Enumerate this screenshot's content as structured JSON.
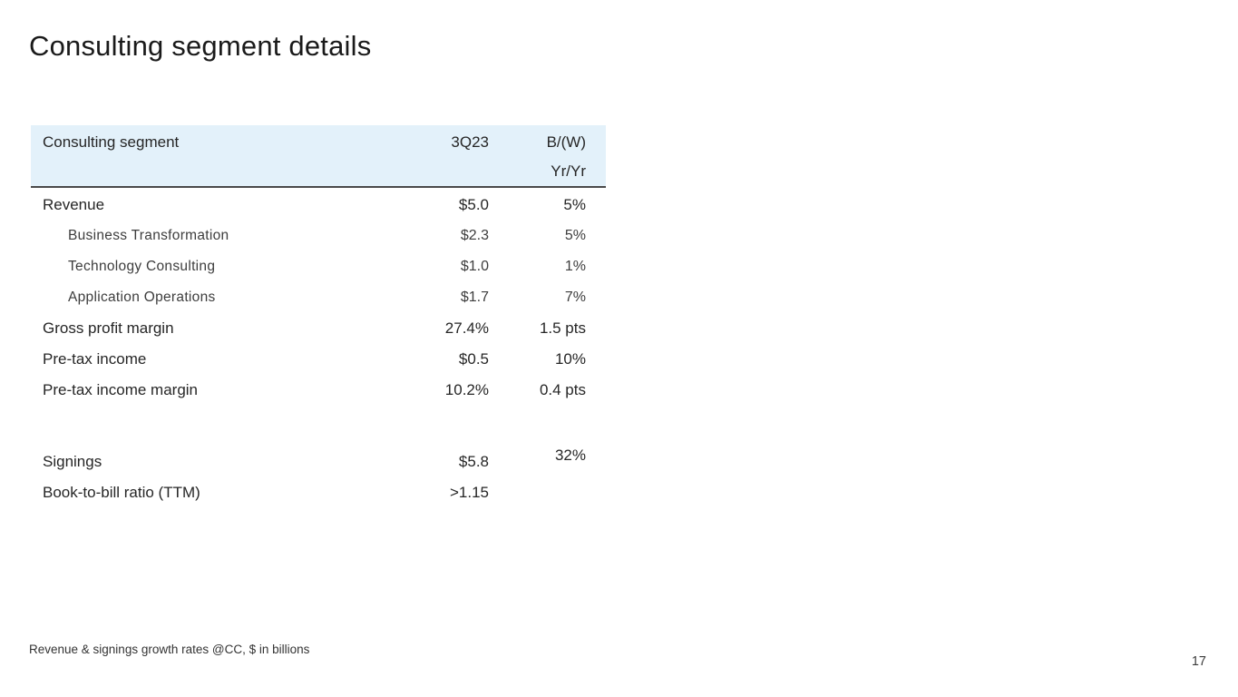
{
  "slide": {
    "title": "Consulting segment details",
    "footnote": "Revenue & signings growth rates @CC, $ in billions",
    "page_number": "17"
  },
  "table": {
    "header": {
      "col_label": "Consulting segment",
      "col_period": "3Q23",
      "col_change_line1": "B/(W)",
      "col_change_line2": "Yr/Yr"
    },
    "rows": [
      {
        "label": "Revenue",
        "value": "$5.0",
        "change": "5%",
        "indent": false
      },
      {
        "label": "Business Transformation",
        "value": "$2.3",
        "change": "5%",
        "indent": true
      },
      {
        "label": "Technology Consulting",
        "value": "$1.0",
        "change": "1%",
        "indent": true
      },
      {
        "label": "Application Operations",
        "value": "$1.7",
        "change": "7%",
        "indent": true
      },
      {
        "label": "Gross profit margin",
        "value": "27.4%",
        "change": "1.5 pts",
        "indent": false
      },
      {
        "label": "Pre-tax income",
        "value": "$0.5",
        "change": "10%",
        "indent": false
      },
      {
        "label": "Pre-tax income margin",
        "value": "10.2%",
        "change": "0.4 pts",
        "indent": false
      },
      {
        "label": "",
        "value": "",
        "change": "",
        "spacer": true
      },
      {
        "label": "Signings",
        "value": "$5.8",
        "change": "32%",
        "indent": false,
        "change_raised": true
      },
      {
        "label": "Book-to-bill ratio (TTM)",
        "value": ">1.15",
        "change": "",
        "indent": false
      }
    ],
    "colors": {
      "header_bg": "#e3f1fa",
      "header_border": "#4a4a4a"
    }
  }
}
